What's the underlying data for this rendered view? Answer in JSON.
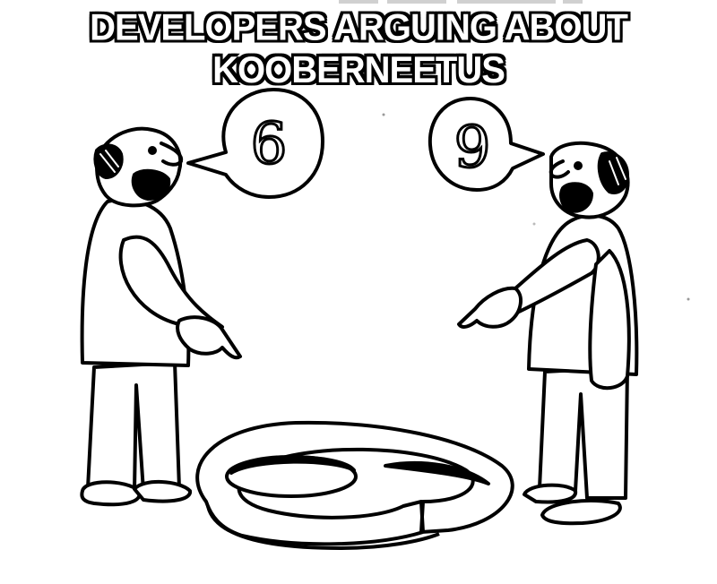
{
  "caption": "DEVELOPERS ARGUING ABOUT KOOBERNEETUS",
  "bubble_left": "6",
  "bubble_right": "9",
  "icons": [
    "man-left-illustration",
    "man-right-illustration",
    "floor-number-six-illustration",
    "speech-bubble-icon"
  ]
}
